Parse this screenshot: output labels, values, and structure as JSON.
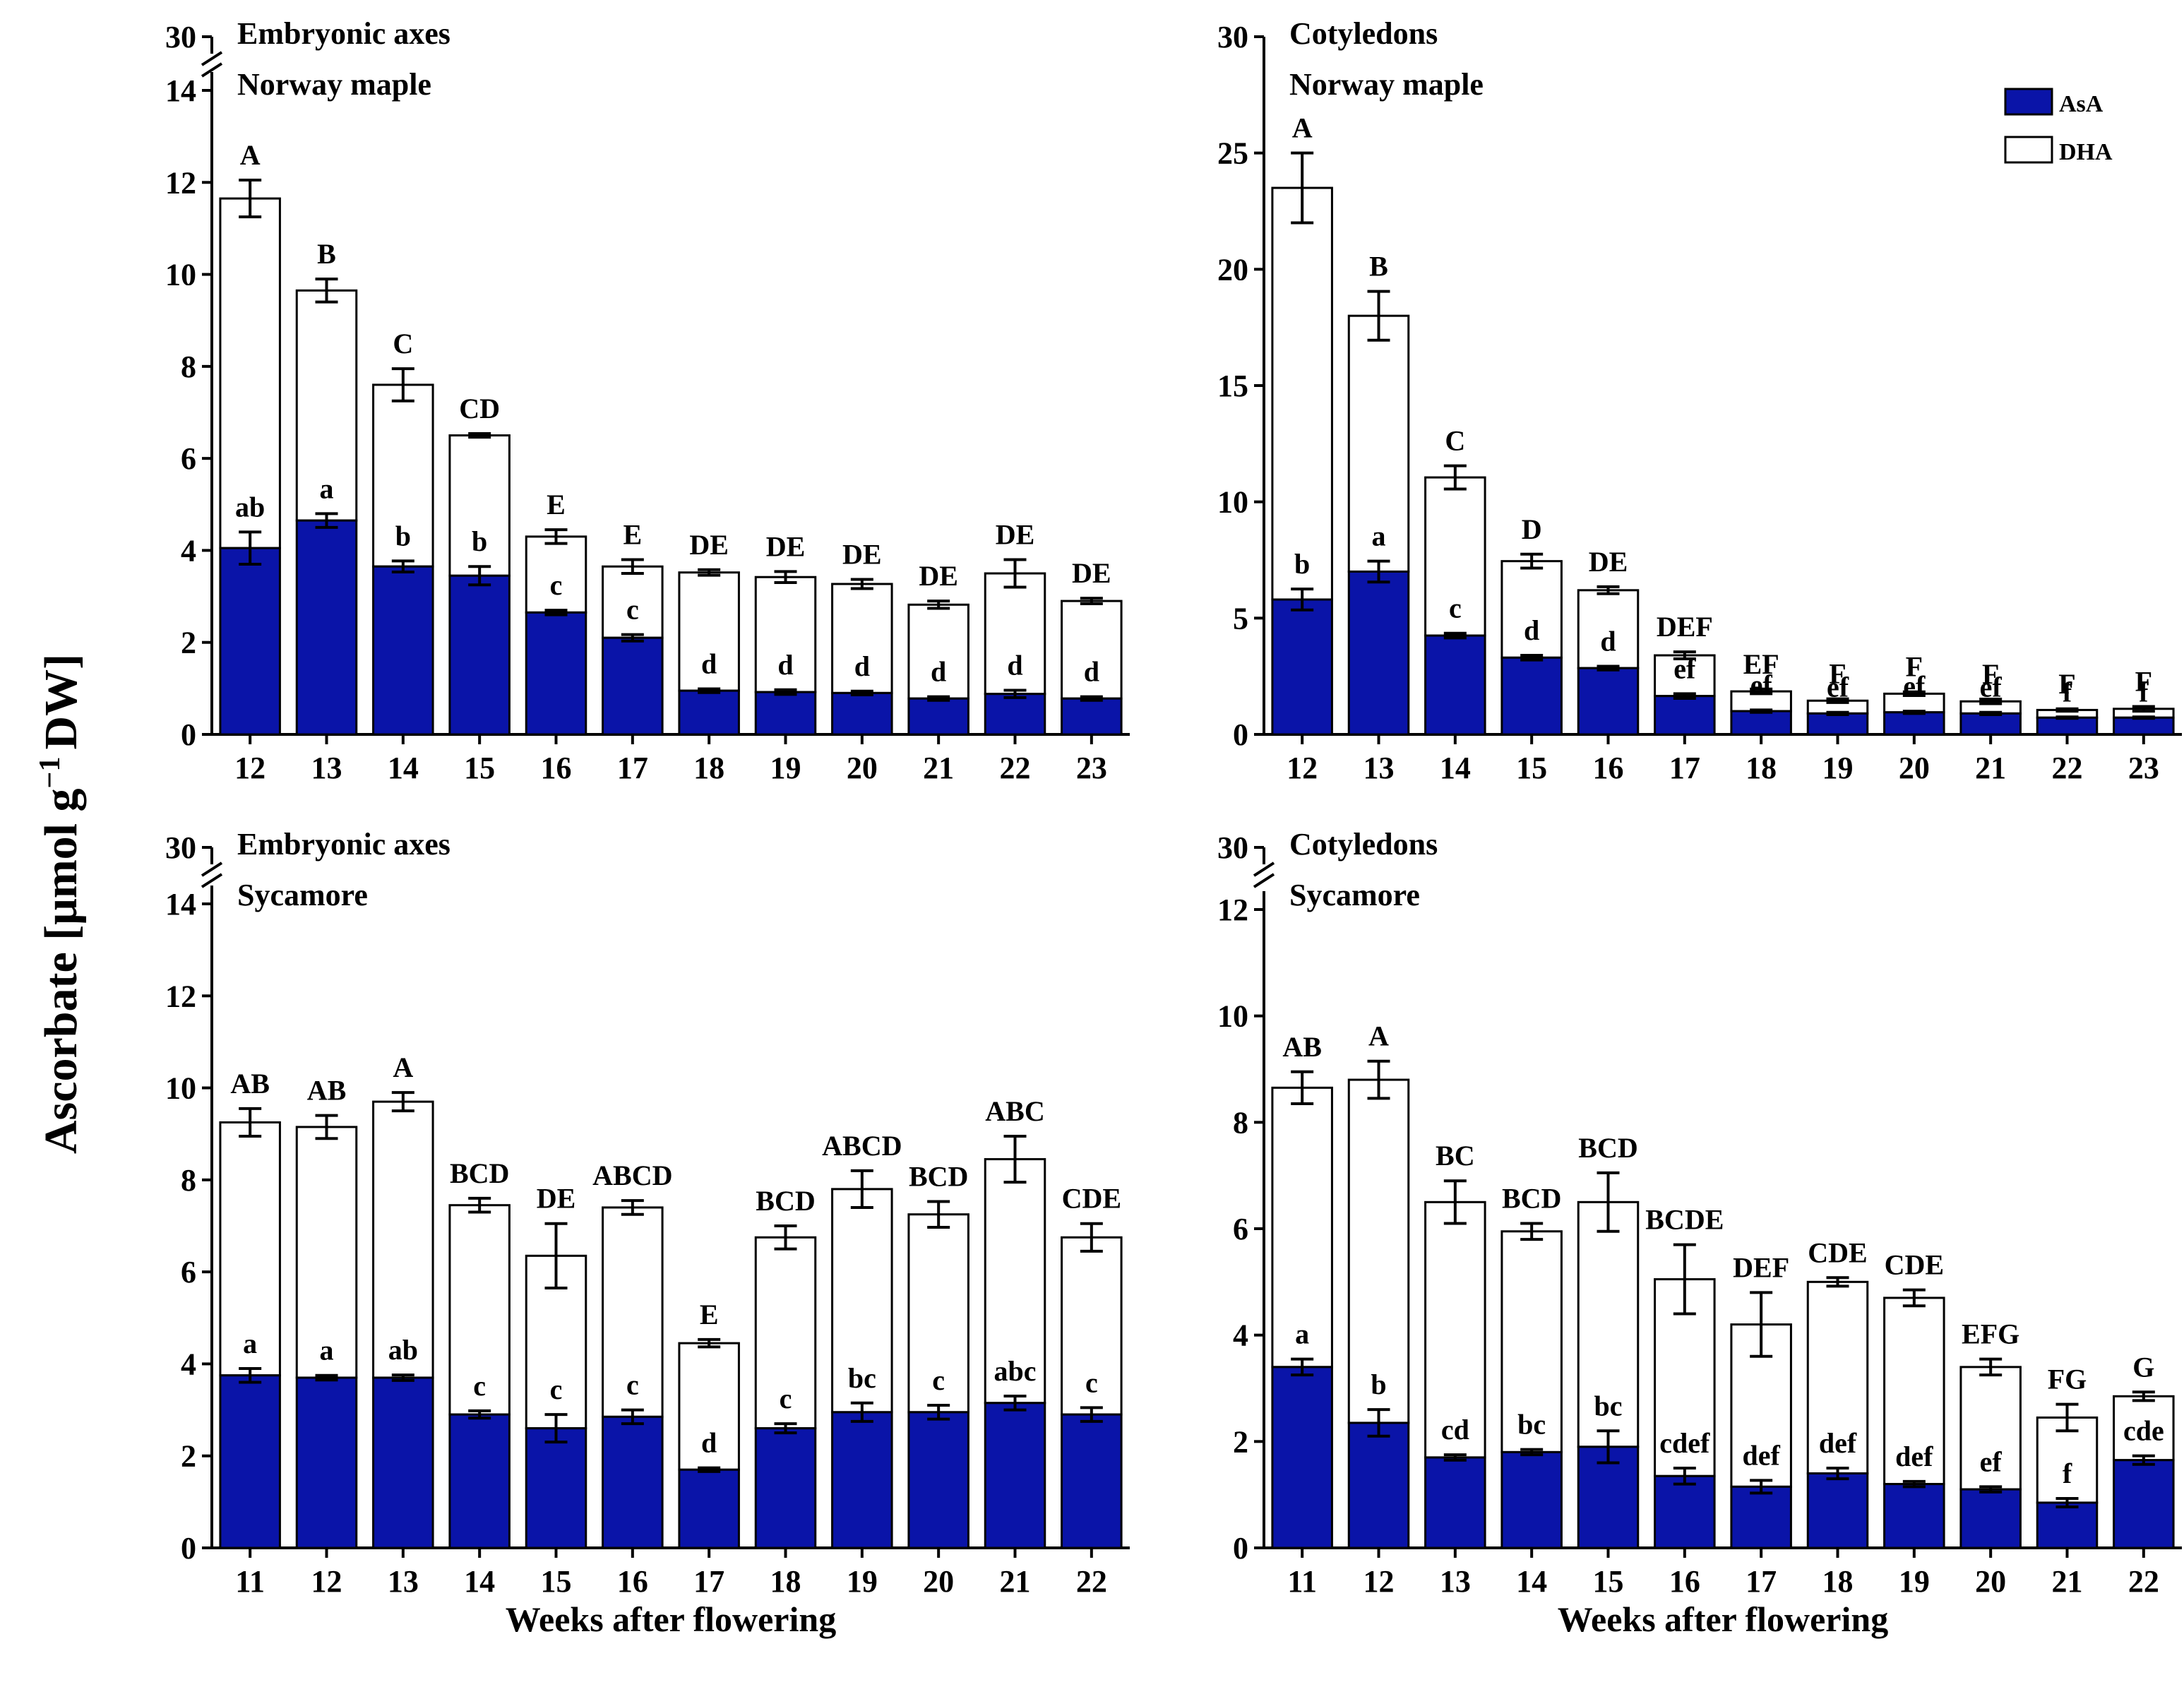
{
  "figure": {
    "y_axis_title": "Ascorbate [μmol g",
    "y_axis_title_sup": "−1",
    "y_axis_title_end": "DW]",
    "legend": {
      "asa": "AsA",
      "dha": "DHA"
    },
    "colors": {
      "asa": "#0a14a8",
      "dha": "#ffffff",
      "axis": "#000000"
    }
  },
  "chart_data": [
    {
      "type": "bar",
      "stacked": true,
      "panel": "top-left",
      "title_line1": "Embryonic axes",
      "title_line2": "Norway maple",
      "xlabel": "",
      "ylabel": "Ascorbate [μmol g−1 DW]",
      "ylim": [
        0,
        30
      ],
      "y_break": [
        14,
        30
      ],
      "yticks": [
        0,
        2,
        4,
        6,
        8,
        10,
        12,
        14,
        30
      ],
      "categories": [
        "12",
        "13",
        "14",
        "15",
        "16",
        "17",
        "18",
        "19",
        "20",
        "21",
        "22",
        "23"
      ],
      "series": [
        {
          "name": "AsA",
          "values": [
            4.05,
            4.65,
            3.65,
            3.45,
            2.65,
            2.1,
            0.95,
            0.92,
            0.9,
            0.78,
            0.88,
            0.78
          ],
          "errors": [
            0.35,
            0.15,
            0.12,
            0.2,
            0.05,
            0.07,
            0.04,
            0.05,
            0.04,
            0.04,
            0.08,
            0.04
          ],
          "letters": [
            "ab",
            "a",
            "b",
            "b",
            "c",
            "c",
            "d",
            "d",
            "d",
            "d",
            "d",
            "d"
          ]
        },
        {
          "name": "DHA",
          "totals": [
            11.65,
            9.65,
            7.6,
            6.5,
            4.3,
            3.65,
            3.52,
            3.42,
            3.27,
            2.82,
            3.5,
            2.9
          ],
          "errors": [
            0.4,
            0.25,
            0.35,
            0.04,
            0.15,
            0.15,
            0.06,
            0.12,
            0.1,
            0.08,
            0.3,
            0.06
          ],
          "letters": [
            "A",
            "B",
            "C",
            "CD",
            "E",
            "E",
            "DE",
            "DE",
            "DE",
            "DE",
            "DE",
            "DE"
          ]
        }
      ]
    },
    {
      "type": "bar",
      "stacked": true,
      "panel": "top-right",
      "title_line1": "Cotyledons",
      "title_line2": "Norway maple",
      "xlabel": "",
      "ylabel": "",
      "ylim": [
        0,
        30
      ],
      "yticks": [
        0,
        5,
        10,
        15,
        20,
        25,
        30
      ],
      "legend_position": "top-right",
      "categories": [
        "12",
        "13",
        "14",
        "15",
        "16",
        "17",
        "18",
        "19",
        "20",
        "21",
        "22",
        "23"
      ],
      "series": [
        {
          "name": "AsA",
          "values": [
            5.8,
            7.0,
            4.25,
            3.3,
            2.85,
            1.65,
            1.0,
            0.9,
            0.95,
            0.9,
            0.72,
            0.72
          ],
          "errors": [
            0.45,
            0.45,
            0.1,
            0.1,
            0.08,
            0.1,
            0.05,
            0.05,
            0.05,
            0.05,
            0.03,
            0.03
          ],
          "letters": [
            "b",
            "a",
            "c",
            "d",
            "d",
            "ef",
            "ef",
            "ef",
            "ef",
            "ef",
            "f",
            "f"
          ]
        },
        {
          "name": "DHA",
          "totals": [
            23.5,
            18.0,
            11.05,
            7.45,
            6.2,
            3.4,
            1.85,
            1.45,
            1.75,
            1.42,
            1.05,
            1.1
          ],
          "errors": [
            1.5,
            1.05,
            0.5,
            0.3,
            0.15,
            0.15,
            0.1,
            0.08,
            0.08,
            0.1,
            0.05,
            0.1
          ],
          "letters": [
            "A",
            "B",
            "C",
            "D",
            "DE",
            "DEF",
            "EF",
            "F",
            "F",
            "F",
            "F",
            "F"
          ]
        }
      ]
    },
    {
      "type": "bar",
      "stacked": true,
      "panel": "bottom-left",
      "title_line1": "Embryonic axes",
      "title_line2": "Sycamore",
      "xlabel": "Weeks after flowering",
      "ylabel": "",
      "ylim": [
        0,
        30
      ],
      "y_break": [
        14,
        30
      ],
      "yticks": [
        0,
        2,
        4,
        6,
        8,
        10,
        12,
        14,
        30
      ],
      "categories": [
        "11",
        "12",
        "13",
        "14",
        "15",
        "16",
        "17",
        "18",
        "19",
        "20",
        "21",
        "22"
      ],
      "series": [
        {
          "name": "AsA",
          "values": [
            3.75,
            3.7,
            3.7,
            2.9,
            2.6,
            2.85,
            1.7,
            2.6,
            2.95,
            2.95,
            3.15,
            2.9
          ],
          "errors": [
            0.15,
            0.05,
            0.06,
            0.08,
            0.3,
            0.15,
            0.04,
            0.1,
            0.2,
            0.15,
            0.15,
            0.15
          ],
          "letters": [
            "a",
            "a",
            "ab",
            "c",
            "c",
            "c",
            "d",
            "c",
            "bc",
            "c",
            "abc",
            "c"
          ]
        },
        {
          "name": "DHA",
          "totals": [
            9.25,
            9.15,
            9.7,
            7.45,
            6.35,
            7.4,
            4.45,
            6.75,
            7.8,
            7.25,
            8.45,
            6.75
          ],
          "errors": [
            0.3,
            0.25,
            0.2,
            0.15,
            0.7,
            0.15,
            0.08,
            0.25,
            0.4,
            0.28,
            0.5,
            0.3
          ],
          "letters": [
            "AB",
            "AB",
            "A",
            "BCD",
            "DE",
            "ABCD",
            "E",
            "BCD",
            "ABCD",
            "BCD",
            "ABC",
            "CDE"
          ]
        }
      ]
    },
    {
      "type": "bar",
      "stacked": true,
      "panel": "bottom-right",
      "title_line1": "Cotyledons",
      "title_line2": "Sycamore",
      "xlabel": "Weeks after flowering",
      "ylabel": "",
      "ylim": [
        0,
        30
      ],
      "y_break": [
        12,
        30
      ],
      "yticks": [
        0,
        2,
        4,
        6,
        8,
        10,
        12,
        30
      ],
      "categories": [
        "11",
        "12",
        "13",
        "14",
        "15",
        "16",
        "17",
        "18",
        "19",
        "20",
        "21",
        "22"
      ],
      "series": [
        {
          "name": "AsA",
          "values": [
            3.4,
            2.35,
            1.7,
            1.8,
            1.9,
            1.35,
            1.15,
            1.4,
            1.2,
            1.1,
            0.85,
            1.65
          ],
          "errors": [
            0.15,
            0.25,
            0.05,
            0.05,
            0.3,
            0.15,
            0.12,
            0.1,
            0.05,
            0.05,
            0.08,
            0.08
          ],
          "letters": [
            "a",
            "b",
            "cd",
            "bc",
            "bc",
            "cdef",
            "def",
            "def",
            "def",
            "ef",
            "f",
            "cde"
          ]
        },
        {
          "name": "DHA",
          "totals": [
            8.65,
            8.8,
            6.5,
            5.95,
            6.5,
            5.05,
            4.2,
            5.0,
            4.7,
            3.4,
            2.45,
            2.85
          ],
          "errors": [
            0.3,
            0.35,
            0.4,
            0.15,
            0.55,
            0.65,
            0.6,
            0.08,
            0.15,
            0.15,
            0.25,
            0.08
          ],
          "letters": [
            "AB",
            "A",
            "BC",
            "BCD",
            "BCD",
            "BCDE",
            "DEF",
            "CDE",
            "CDE",
            "EFG",
            "FG",
            "G"
          ]
        }
      ]
    }
  ]
}
